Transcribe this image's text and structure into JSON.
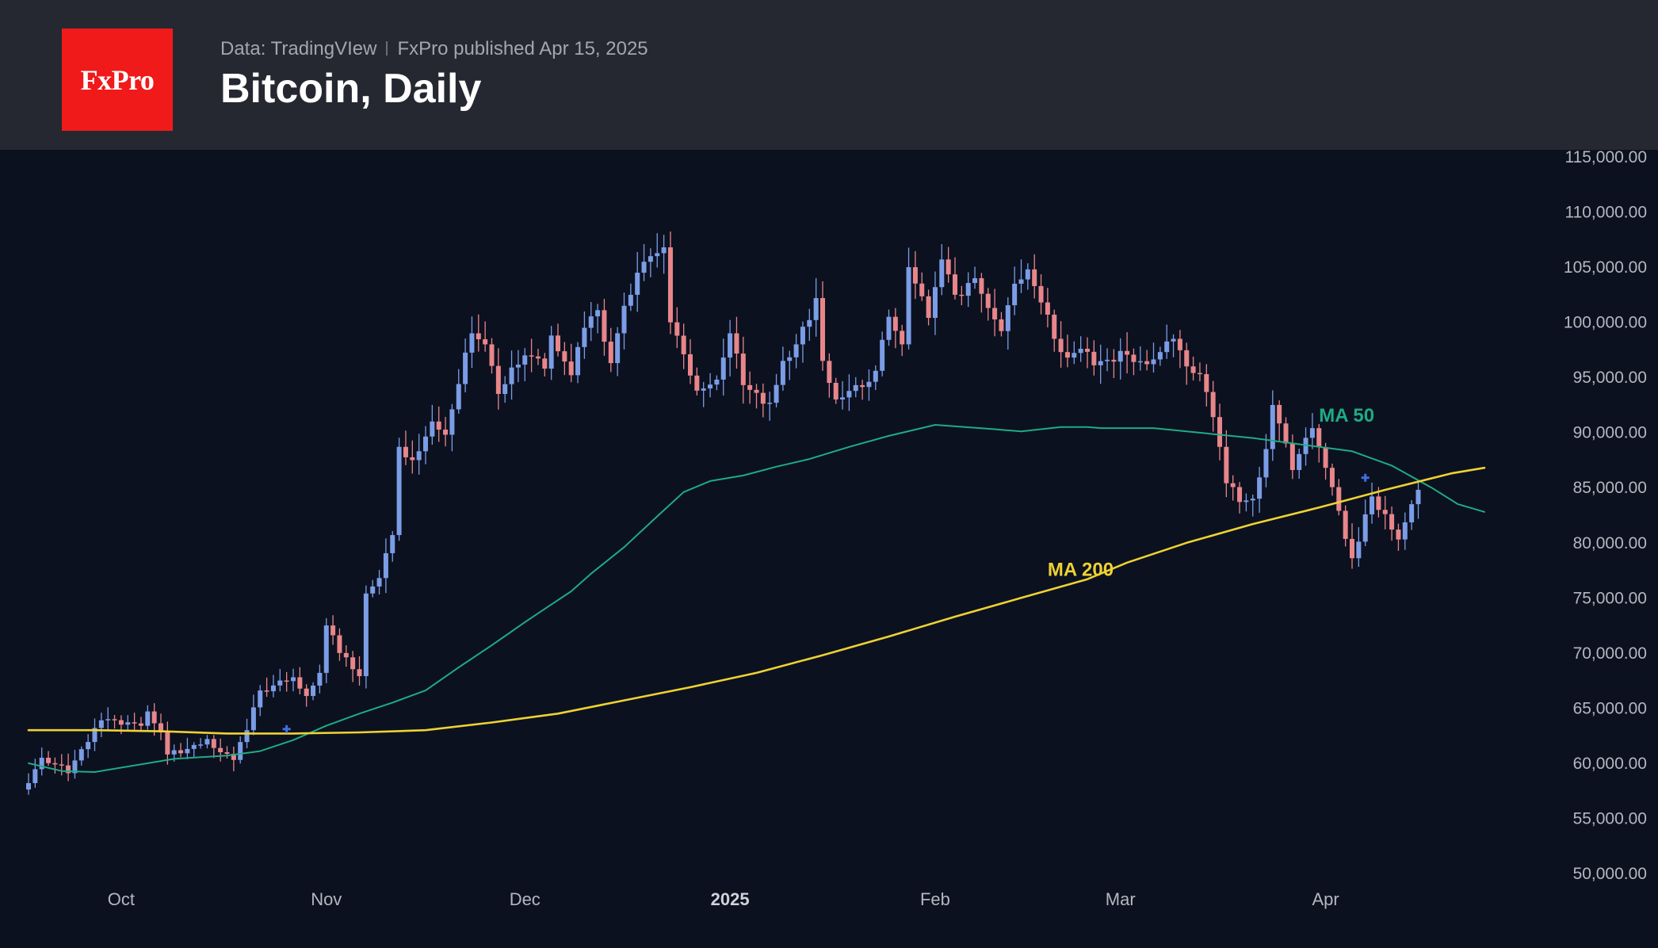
{
  "header": {
    "logo_text": "FxPro",
    "data_source": "Data: TradingVIew",
    "publisher": "FxPro published Apr 15, 2025",
    "title": "Bitcoin, Daily"
  },
  "colors": {
    "background": "#0c1120",
    "header_background": "#262831",
    "logo_red": "#f11a1a",
    "candle_up": "#7b9de6",
    "candle_down": "#e8868a",
    "ma50": "#1fab84",
    "ma200": "#eed232",
    "cross_marker": "#3f6fe0"
  },
  "chart_data": {
    "type": "candlestick",
    "title": "Bitcoin, Daily",
    "ylim": [
      50000,
      115000
    ],
    "y_ticks": [
      "50,000.00",
      "55,000.00",
      "60,000.00",
      "65,000.00",
      "70,000.00",
      "75,000.00",
      "80,000.00",
      "85,000.00",
      "90,000.00",
      "95,000.00",
      "100,000.00",
      "105,000.00",
      "110,000.00",
      "115,000.00"
    ],
    "x_ticks": [
      {
        "label": "Oct",
        "day": 14,
        "bold": false
      },
      {
        "label": "Nov",
        "day": 45,
        "bold": false
      },
      {
        "label": "Dec",
        "day": 75,
        "bold": false
      },
      {
        "label": "2025",
        "day": 106,
        "bold": true
      },
      {
        "label": "Feb",
        "day": 137,
        "bold": false
      },
      {
        "label": "Mar",
        "day": 165,
        "bold": false
      },
      {
        "label": "Apr",
        "day": 196,
        "bold": false
      }
    ],
    "date_range": [
      "2024-09-17",
      "2025-04-15"
    ],
    "anchors": [
      [
        "2024-09-17",
        58200
      ],
      [
        "2024-09-19",
        60500
      ],
      [
        "2024-09-23",
        59100
      ],
      [
        "2024-09-27",
        63200
      ],
      [
        "2024-09-29",
        64000
      ],
      [
        "2024-10-01",
        63500
      ],
      [
        "2024-10-04",
        63400
      ],
      [
        "2024-10-05",
        64700
      ],
      [
        "2024-10-07",
        62800
      ],
      [
        "2024-10-08",
        60800
      ],
      [
        "2024-10-11",
        61300
      ],
      [
        "2024-10-14",
        62200
      ],
      [
        "2024-10-16",
        61000
      ],
      [
        "2024-10-18",
        60300
      ],
      [
        "2024-10-20",
        63000
      ],
      [
        "2024-10-22",
        66600
      ],
      [
        "2024-10-27",
        67800
      ],
      [
        "2024-10-29",
        66100
      ],
      [
        "2024-10-31",
        68200
      ],
      [
        "2024-11-01",
        72500
      ],
      [
        "2024-11-03",
        70000
      ],
      [
        "2024-11-06",
        67900
      ],
      [
        "2024-11-07",
        75400
      ],
      [
        "2024-11-09",
        76800
      ],
      [
        "2024-11-11",
        80700
      ],
      [
        "2024-11-12",
        88700
      ],
      [
        "2024-11-14",
        87500
      ],
      [
        "2024-11-17",
        91000
      ],
      [
        "2024-11-19",
        89800
      ],
      [
        "2024-11-21",
        94400
      ],
      [
        "2024-11-23",
        99000
      ],
      [
        "2024-11-25",
        98000
      ],
      [
        "2024-11-27",
        93500
      ],
      [
        "2024-11-29",
        95900
      ],
      [
        "2024-12-02",
        96900
      ],
      [
        "2024-12-04",
        95800
      ],
      [
        "2024-12-05",
        98800
      ],
      [
        "2024-12-08",
        95200
      ],
      [
        "2024-12-10",
        99500
      ],
      [
        "2024-12-12",
        101100
      ],
      [
        "2024-12-14",
        96300
      ],
      [
        "2024-12-16",
        101500
      ],
      [
        "2024-12-18",
        104500
      ],
      [
        "2024-12-20",
        106000
      ],
      [
        "2024-12-22",
        106800
      ],
      [
        "2024-12-23",
        100000
      ],
      [
        "2024-12-25",
        97100
      ],
      [
        "2024-12-27",
        93800
      ],
      [
        "2024-12-30",
        94800
      ],
      [
        "2025-01-01",
        99000
      ],
      [
        "2025-01-03",
        94300
      ],
      [
        "2025-01-05",
        93600
      ],
      [
        "2025-01-07",
        92700
      ],
      [
        "2025-01-09",
        96500
      ],
      [
        "2025-01-11",
        98000
      ],
      [
        "2025-01-14",
        102200
      ],
      [
        "2025-01-15",
        96500
      ],
      [
        "2025-01-17",
        93000
      ],
      [
        "2025-01-20",
        94300
      ],
      [
        "2025-01-22",
        94600
      ],
      [
        "2025-01-23",
        95600
      ],
      [
        "2025-01-25",
        100500
      ],
      [
        "2025-01-27",
        98000
      ],
      [
        "2025-01-28",
        105000
      ],
      [
        "2025-01-31",
        100400
      ],
      [
        "2025-02-02",
        105700
      ],
      [
        "2025-02-04",
        102500
      ],
      [
        "2025-02-07",
        104000
      ],
      [
        "2025-02-09",
        101300
      ],
      [
        "2025-02-11",
        99200
      ],
      [
        "2025-02-13",
        103500
      ],
      [
        "2025-02-15",
        104800
      ],
      [
        "2025-02-17",
        101800
      ],
      [
        "2025-02-19",
        98500
      ],
      [
        "2025-02-21",
        96800
      ],
      [
        "2025-02-23",
        97600
      ],
      [
        "2025-02-25",
        96100
      ],
      [
        "2025-02-27",
        96600
      ],
      [
        "2025-03-01",
        97400
      ],
      [
        "2025-03-03",
        96400
      ],
      [
        "2025-03-05",
        96200
      ],
      [
        "2025-03-07",
        97300
      ],
      [
        "2025-03-09",
        98500
      ],
      [
        "2025-03-11",
        96000
      ],
      [
        "2025-03-13",
        95300
      ],
      [
        "2025-03-15",
        91400
      ],
      [
        "2025-03-16",
        88700
      ],
      [
        "2025-03-17",
        85400
      ],
      [
        "2025-03-19",
        83700
      ],
      [
        "2025-03-21",
        84000
      ],
      [
        "2025-03-23",
        88500
      ],
      [
        "2025-03-24",
        92500
      ],
      [
        "2025-03-26",
        89000
      ],
      [
        "2025-03-27",
        86600
      ],
      [
        "2025-03-30",
        90400
      ],
      [
        "2025-04-01",
        86800
      ],
      [
        "2025-04-03",
        82900
      ],
      [
        "2025-04-05",
        78600
      ],
      [
        "2025-04-06",
        80100
      ],
      [
        "2025-04-08",
        84200
      ],
      [
        "2025-04-10",
        82600
      ],
      [
        "2025-04-12",
        80300
      ],
      [
        "2025-04-14",
        83500
      ],
      [
        "2025-04-15",
        84800
      ]
    ],
    "series": [
      {
        "name": "MA 50",
        "color": "#1fab84",
        "label_at": [
          "2025-03-31",
          91000
        ],
        "values": [
          [
            0,
            60000
          ],
          [
            5,
            59300
          ],
          [
            10,
            59200
          ],
          [
            22,
            60400
          ],
          [
            30,
            60700
          ],
          [
            35,
            61100
          ],
          [
            40,
            62100
          ],
          [
            45,
            63400
          ],
          [
            50,
            64500
          ],
          [
            55,
            65500
          ],
          [
            60,
            66600
          ],
          [
            65,
            68700
          ],
          [
            70,
            70700
          ],
          [
            75,
            72800
          ],
          [
            78,
            74000
          ],
          [
            82,
            75600
          ],
          [
            85,
            77200
          ],
          [
            90,
            79600
          ],
          [
            95,
            82400
          ],
          [
            99,
            84600
          ],
          [
            103,
            85600
          ],
          [
            108,
            86100
          ],
          [
            113,
            86900
          ],
          [
            118,
            87600
          ],
          [
            124,
            88700
          ],
          [
            130,
            89700
          ],
          [
            137,
            90700
          ],
          [
            146,
            90300
          ],
          [
            150,
            90100
          ],
          [
            156,
            90500
          ],
          [
            160,
            90500
          ],
          [
            162,
            90400
          ],
          [
            170,
            90400
          ],
          [
            175,
            90100
          ],
          [
            185,
            89500
          ],
          [
            200,
            88300
          ],
          [
            206,
            87000
          ],
          [
            212,
            85000
          ],
          [
            216,
            83500
          ],
          [
            220,
            82800
          ]
        ]
      },
      {
        "name": "MA 200",
        "color": "#eed232",
        "label_at": [
          "2025-02-18",
          77000
        ],
        "values": [
          [
            0,
            63000
          ],
          [
            10,
            63000
          ],
          [
            20,
            62900
          ],
          [
            30,
            62700
          ],
          [
            40,
            62700
          ],
          [
            50,
            62800
          ],
          [
            60,
            63000
          ],
          [
            70,
            63700
          ],
          [
            80,
            64500
          ],
          [
            90,
            65700
          ],
          [
            100,
            66900
          ],
          [
            110,
            68200
          ],
          [
            120,
            69800
          ],
          [
            130,
            71500
          ],
          [
            140,
            73300
          ],
          [
            150,
            75000
          ],
          [
            160,
            76700
          ],
          [
            166,
            78200
          ],
          [
            175,
            80000
          ],
          [
            185,
            81700
          ],
          [
            195,
            83200
          ],
          [
            205,
            84800
          ],
          [
            215,
            86300
          ],
          [
            220,
            86800
          ]
        ]
      }
    ],
    "cross_markers": [
      {
        "name": "golden-cross",
        "date": "2024-10-26",
        "value": 63100
      },
      {
        "name": "death-cross",
        "date": "2025-04-07",
        "value": 85900
      }
    ]
  }
}
